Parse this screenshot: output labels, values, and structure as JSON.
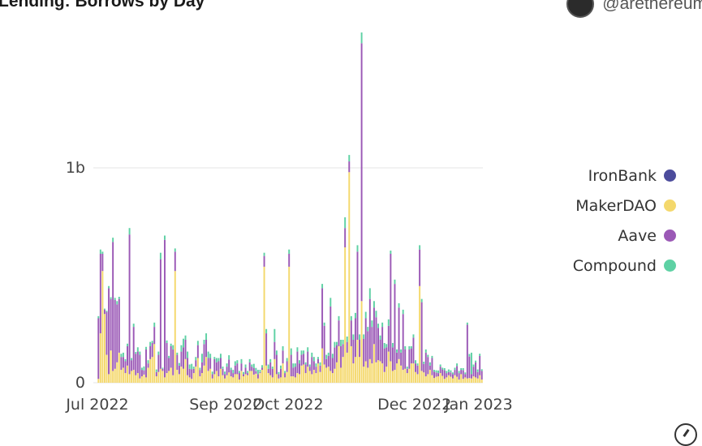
{
  "header": {
    "title": "Lending: Borrows by Day",
    "author_handle": "@arethereum"
  },
  "chart_data": {
    "type": "bar",
    "stacked": true,
    "title": "Lending: Borrows by Day",
    "xlabel": "",
    "ylabel": "",
    "x_range": [
      "2022-07-01",
      "2023-01-02"
    ],
    "ylim": [
      0,
      1600000000
    ],
    "y_ticks": [
      {
        "value": 0,
        "label": "0"
      },
      {
        "value": 1000000000,
        "label": "1b"
      }
    ],
    "x_ticks": [
      {
        "date": "2022-07-01",
        "label": "Jul 2022"
      },
      {
        "date": "2022-09-01",
        "label": "Sep 2022"
      },
      {
        "date": "2022-10-01",
        "label": "Oct 2022"
      },
      {
        "date": "2022-12-01",
        "label": "Dec 2022"
      },
      {
        "date": "2023-01-01",
        "label": "Jan 2023"
      }
    ],
    "grid": true,
    "legend_position": "right",
    "series": [
      {
        "name": "IronBank",
        "color": "#4c4c9c",
        "values": [
          0,
          0,
          0,
          0,
          0,
          0,
          0,
          0,
          0,
          0,
          0,
          0,
          0,
          0,
          0,
          0,
          0,
          0,
          0,
          0,
          0,
          0,
          0,
          0,
          0,
          0,
          0,
          0,
          0,
          0,
          0,
          0,
          0,
          0,
          0,
          0,
          0,
          0,
          0,
          0,
          0,
          0,
          0,
          0,
          0,
          0,
          0,
          0,
          0,
          0,
          0,
          0,
          0,
          0,
          0,
          0,
          0,
          0,
          0,
          0,
          0,
          0,
          0,
          0,
          0,
          0,
          0,
          0,
          0,
          0,
          0,
          0,
          0,
          0,
          0,
          0,
          0,
          0,
          0,
          0,
          0,
          0,
          0,
          0,
          0,
          0,
          0,
          0,
          0,
          0,
          0,
          0,
          0,
          0,
          0,
          0,
          0,
          0,
          0,
          0,
          0,
          0,
          0,
          0,
          0,
          0,
          0,
          0,
          0,
          0,
          0,
          0,
          0,
          0,
          0,
          0,
          0,
          0,
          0,
          0,
          0,
          0,
          0,
          0,
          0,
          0,
          0,
          0,
          0,
          0,
          0,
          0,
          0,
          0,
          0,
          0,
          0,
          0,
          0,
          0,
          0,
          0,
          0,
          0,
          0,
          0,
          0,
          0,
          0,
          0,
          0,
          0,
          0,
          0,
          0,
          0,
          0,
          0,
          0,
          0,
          0,
          0,
          0,
          0,
          0,
          0,
          0,
          0,
          0,
          0,
          0,
          0,
          0,
          0,
          0,
          0,
          0,
          0,
          0,
          0,
          0,
          0,
          0,
          0,
          0,
          0
        ]
      },
      {
        "name": "MakerDAO",
        "color": "#f4d86c",
        "values": [
          18000000,
          230000000,
          520000000,
          320000000,
          130000000,
          40000000,
          150000000,
          55000000,
          65000000,
          95000000,
          140000000,
          60000000,
          70000000,
          45000000,
          80000000,
          40000000,
          55000000,
          60000000,
          35000000,
          45000000,
          20000000,
          30000000,
          38000000,
          25000000,
          70000000,
          110000000,
          120000000,
          180000000,
          30000000,
          50000000,
          65000000,
          55000000,
          25000000,
          45000000,
          55000000,
          70000000,
          35000000,
          520000000,
          60000000,
          40000000,
          75000000,
          65000000,
          110000000,
          35000000,
          25000000,
          18000000,
          45000000,
          75000000,
          115000000,
          30000000,
          45000000,
          80000000,
          120000000,
          55000000,
          65000000,
          20000000,
          40000000,
          55000000,
          30000000,
          65000000,
          35000000,
          20000000,
          35000000,
          48000000,
          30000000,
          25000000,
          40000000,
          40000000,
          15000000,
          55000000,
          30000000,
          40000000,
          35000000,
          55000000,
          55000000,
          38000000,
          42000000,
          20000000,
          45000000,
          60000000,
          540000000,
          80000000,
          45000000,
          35000000,
          25000000,
          110000000,
          40000000,
          20000000,
          25000000,
          90000000,
          25000000,
          50000000,
          540000000,
          30000000,
          30000000,
          25000000,
          45000000,
          40000000,
          80000000,
          85000000,
          45000000,
          75000000,
          55000000,
          40000000,
          60000000,
          45000000,
          90000000,
          50000000,
          160000000,
          85000000,
          70000000,
          75000000,
          55000000,
          45000000,
          65000000,
          95000000,
          170000000,
          70000000,
          120000000,
          630000000,
          140000000,
          980000000,
          170000000,
          90000000,
          120000000,
          200000000,
          120000000,
          380000000,
          75000000,
          100000000,
          70000000,
          110000000,
          90000000,
          180000000,
          95000000,
          105000000,
          100000000,
          90000000,
          50000000,
          75000000,
          145000000,
          100000000,
          55000000,
          60000000,
          90000000,
          110000000,
          80000000,
          60000000,
          65000000,
          45000000,
          65000000,
          90000000,
          90000000,
          50000000,
          40000000,
          450000000,
          55000000,
          48000000,
          30000000,
          40000000,
          60000000,
          35000000,
          22000000,
          28000000,
          30000000,
          45000000,
          32000000,
          18000000,
          25000000,
          35000000,
          28000000,
          20000000,
          35000000,
          28000000,
          15000000,
          40000000,
          18000000,
          25000000,
          20000000,
          22000000,
          20000000,
          30000000,
          25000000,
          20000000,
          35000000,
          15000000
        ]
      },
      {
        "name": "Aave",
        "color": "#9b59b6",
        "values": [
          282000000,
          370000000,
          80000000,
          20000000,
          200000000,
          400000000,
          240000000,
          600000000,
          320000000,
          270000000,
          250000000,
          60000000,
          50000000,
          55000000,
          90000000,
          650000000,
          50000000,
          200000000,
          100000000,
          100000000,
          110000000,
          30000000,
          20000000,
          130000000,
          20000000,
          60000000,
          65000000,
          80000000,
          20000000,
          80000000,
          510000000,
          10000000,
          640000000,
          140000000,
          60000000,
          100000000,
          120000000,
          90000000,
          70000000,
          40000000,
          70000000,
          100000000,
          90000000,
          80000000,
          40000000,
          45000000,
          20000000,
          30000000,
          60000000,
          30000000,
          50000000,
          100000000,
          80000000,
          60000000,
          50000000,
          20000000,
          70000000,
          40000000,
          70000000,
          50000000,
          30000000,
          20000000,
          40000000,
          60000000,
          30000000,
          20000000,
          40000000,
          50000000,
          30000000,
          35000000,
          10000000,
          30000000,
          10000000,
          40000000,
          20000000,
          30000000,
          12000000,
          20000000,
          5000000,
          10000000,
          50000000,
          150000000,
          20000000,
          60000000,
          40000000,
          80000000,
          90000000,
          20000000,
          40000000,
          60000000,
          20000000,
          50000000,
          60000000,
          100000000,
          40000000,
          50000000,
          100000000,
          50000000,
          50000000,
          50000000,
          40000000,
          70000000,
          20000000,
          80000000,
          40000000,
          30000000,
          20000000,
          30000000,
          280000000,
          180000000,
          40000000,
          50000000,
          300000000,
          70000000,
          100000000,
          80000000,
          120000000,
          100000000,
          60000000,
          90000000,
          50000000,
          50000000,
          120000000,
          110000000,
          180000000,
          410000000,
          80000000,
          1200000000,
          130000000,
          200000000,
          170000000,
          280000000,
          170000000,
          170000000,
          210000000,
          150000000,
          100000000,
          170000000,
          110000000,
          90000000,
          120000000,
          500000000,
          110000000,
          400000000,
          50000000,
          240000000,
          60000000,
          260000000,
          90000000,
          20000000,
          90000000,
          70000000,
          120000000,
          40000000,
          40000000,
          170000000,
          320000000,
          40000000,
          110000000,
          80000000,
          20000000,
          80000000,
          30000000,
          20000000,
          15000000,
          30000000,
          30000000,
          40000000,
          20000000,
          15000000,
          20000000,
          20000000,
          25000000,
          50000000,
          30000000,
          20000000,
          40000000,
          15000000,
          250000000,
          100000000,
          20000000,
          45000000,
          70000000,
          30000000,
          90000000,
          40000000,
          50000000,
          70000000
        ]
      },
      {
        "name": "Compound",
        "color": "#5ed1a4",
        "values": [
          10000000,
          20000000,
          10000000,
          5000000,
          5000000,
          10000000,
          8000000,
          20000000,
          10000000,
          15000000,
          10000000,
          15000000,
          20000000,
          10000000,
          12000000,
          30000000,
          10000000,
          15000000,
          8000000,
          20000000,
          15000000,
          10000000,
          18000000,
          12000000,
          15000000,
          20000000,
          10000000,
          20000000,
          12000000,
          15000000,
          30000000,
          5000000,
          20000000,
          12000000,
          10000000,
          12000000,
          20000000,
          15000000,
          10000000,
          12000000,
          30000000,
          40000000,
          20000000,
          30000000,
          20000000,
          25000000,
          10000000,
          15000000,
          20000000,
          10000000,
          40000000,
          20000000,
          30000000,
          30000000,
          20000000,
          12000000,
          10000000,
          20000000,
          15000000,
          20000000,
          10000000,
          12000000,
          15000000,
          20000000,
          10000000,
          15000000,
          20000000,
          15000000,
          10000000,
          20000000,
          10000000,
          15000000,
          10000000,
          15000000,
          10000000,
          20000000,
          15000000,
          20000000,
          10000000,
          12000000,
          15000000,
          20000000,
          20000000,
          15000000,
          10000000,
          60000000,
          20000000,
          10000000,
          15000000,
          20000000,
          10000000,
          15000000,
          20000000,
          30000000,
          20000000,
          15000000,
          20000000,
          15000000,
          20000000,
          15000000,
          10000000,
          20000000,
          10000000,
          20000000,
          20000000,
          15000000,
          10000000,
          15000000,
          20000000,
          15000000,
          20000000,
          15000000,
          40000000,
          20000000,
          25000000,
          15000000,
          20000000,
          30000000,
          20000000,
          50000000,
          25000000,
          30000000,
          20000000,
          25000000,
          25000000,
          30000000,
          25000000,
          50000000,
          20000000,
          30000000,
          20000000,
          50000000,
          30000000,
          30000000,
          30000000,
          20000000,
          20000000,
          20000000,
          25000000,
          15000000,
          30000000,
          15000000,
          20000000,
          20000000,
          15000000,
          20000000,
          15000000,
          20000000,
          15000000,
          10000000,
          15000000,
          10000000,
          15000000,
          15000000,
          10000000,
          20000000,
          15000000,
          10000000,
          15000000,
          10000000,
          15000000,
          10000000,
          8000000,
          10000000,
          12000000,
          10000000,
          8000000,
          10000000,
          10000000,
          12000000,
          10000000,
          8000000,
          10000000,
          12000000,
          10000000,
          8000000,
          10000000,
          8000000,
          10000000,
          12000000,
          100000000,
          10000000,
          8000000,
          12000000,
          10000000,
          8000000
        ]
      }
    ]
  }
}
